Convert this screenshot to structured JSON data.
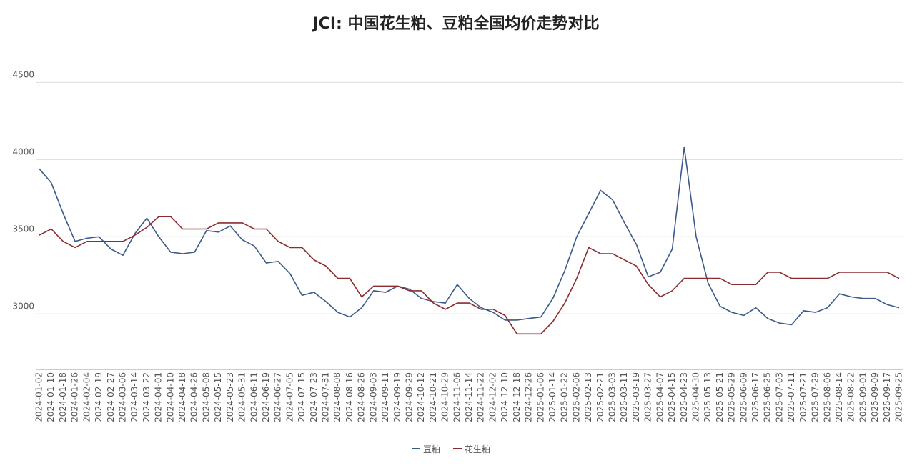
{
  "chart_data": {
    "type": "line",
    "title": "JCI: 中国花生粕、豆粕全国均价走势对比",
    "categories": [
      "2024-01-02",
      "2024-01-10",
      "2024-01-18",
      "2024-01-26",
      "2024-02-04",
      "2024-02-19",
      "2024-02-27",
      "2024-03-06",
      "2024-03-14",
      "2024-03-22",
      "2024-04-01",
      "2024-04-10",
      "2024-04-18",
      "2024-04-26",
      "2024-05-08",
      "2024-05-15",
      "2024-05-23",
      "2024-05-31",
      "2024-06-11",
      "2024-06-19",
      "2024-06-27",
      "2024-07-05",
      "2024-07-15",
      "2024-07-23",
      "2024-07-31",
      "2024-08-08",
      "2024-08-16",
      "2024-08-26",
      "2024-09-03",
      "2024-09-11",
      "2024-09-19",
      "2024-09-29",
      "2024-10-12",
      "2024-10-21",
      "2024-10-29",
      "2024-11-06",
      "2024-11-14",
      "2024-11-22",
      "2024-12-02",
      "2024-12-10",
      "2024-12-18",
      "2024-12-26",
      "2025-01-06",
      "2025-01-14",
      "2025-01-22",
      "2025-02-06",
      "2025-02-13",
      "2025-02-21",
      "2025-03-03",
      "2025-03-11",
      "2025-03-19",
      "2025-03-27",
      "2025-04-07",
      "2025-04-15",
      "2025-04-23",
      "2025-04-30",
      "2025-05-13",
      "2025-05-21",
      "2025-05-29",
      "2025-06-09",
      "2025-06-17",
      "2025-06-25",
      "2025-07-03",
      "2025-07-11",
      "2025-07-21",
      "2025-07-29",
      "2025-08-06",
      "2025-08-14",
      "2025-08-22",
      "2025-09-01",
      "2025-09-09",
      "2025-09-17",
      "2025-09-25"
    ],
    "series": [
      {
        "name": "豆粕",
        "color": "#3b5a8c",
        "values": [
          3940,
          3850,
          3650,
          3470,
          3490,
          3500,
          3420,
          3380,
          3520,
          3620,
          3500,
          3400,
          3390,
          3400,
          3540,
          3530,
          3570,
          3480,
          3440,
          3330,
          3340,
          3260,
          3120,
          3140,
          3080,
          3010,
          2980,
          3040,
          3150,
          3140,
          3180,
          3160,
          3100,
          3080,
          3070,
          3190,
          3100,
          3040,
          3010,
          2960,
          2960,
          2970,
          2980,
          3100,
          3280,
          3500,
          3650,
          3800,
          3740,
          3590,
          3450,
          3240,
          3270,
          3420,
          4080,
          3500,
          3200,
          3050,
          3010,
          2990,
          3040,
          2970,
          2940,
          2930,
          3020,
          3010,
          3040,
          3130,
          3110,
          3100,
          3100,
          3060,
          3040
        ]
      },
      {
        "name": "花生粕",
        "color": "#8c2b30",
        "values": [
          3510,
          3550,
          3470,
          3430,
          3470,
          3470,
          3470,
          3470,
          3510,
          3560,
          3630,
          3630,
          3550,
          3550,
          3550,
          3590,
          3590,
          3590,
          3550,
          3550,
          3470,
          3430,
          3430,
          3350,
          3310,
          3230,
          3230,
          3110,
          3180,
          3180,
          3180,
          3150,
          3150,
          3070,
          3030,
          3070,
          3070,
          3030,
          3030,
          2990,
          2870,
          2870,
          2870,
          2950,
          3070,
          3230,
          3430,
          3390,
          3390,
          3350,
          3310,
          3190,
          3110,
          3150,
          3230,
          3230,
          3230,
          3230,
          3190,
          3190,
          3190,
          3270,
          3270,
          3230,
          3230,
          3230,
          3230,
          3270,
          3270,
          3270,
          3270,
          3270,
          3230
        ]
      }
    ],
    "ylim": [
      2640,
      4710
    ],
    "yticks": [
      3000,
      3500,
      4000,
      4500
    ],
    "grid": true,
    "legend": "bottom"
  }
}
